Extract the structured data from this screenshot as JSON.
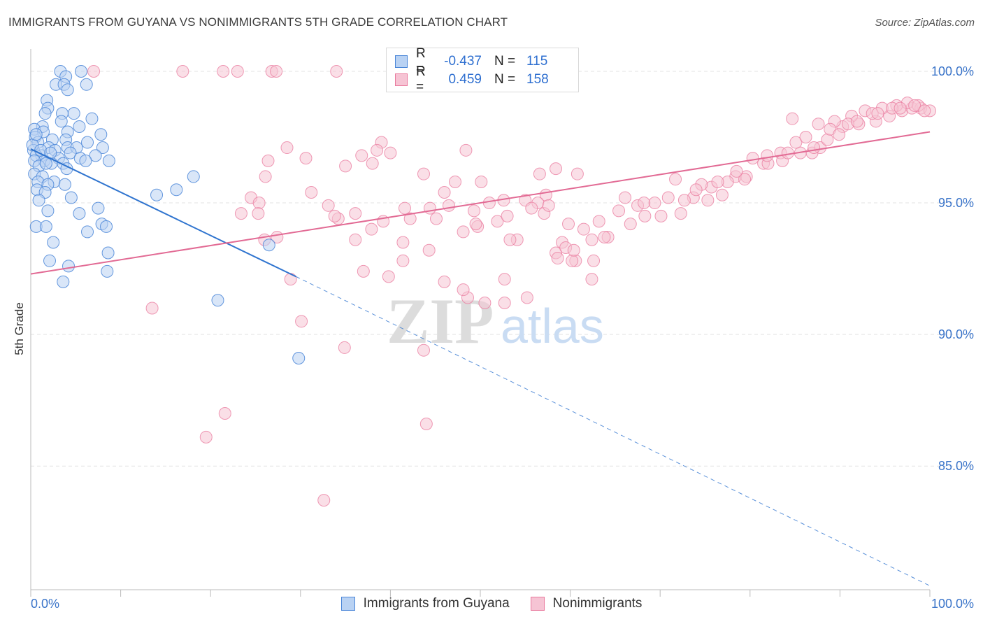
{
  "title": "IMMIGRANTS FROM GUYANA VS NONIMMIGRANTS 5TH GRADE CORRELATION CHART",
  "source": "Source: ZipAtlas.com",
  "watermark": {
    "zip": "ZIP",
    "atlas": "atlas"
  },
  "legend": {
    "r_label": "R =",
    "n_label": "N =",
    "series": [
      {
        "r": "-0.437",
        "n": "115"
      },
      {
        "r": "0.459",
        "n": "158"
      }
    ]
  },
  "bottom_legend": [
    "Immigrants from Guyana",
    "Nonimmigrants"
  ],
  "colors": {
    "blue": "#4a86d8",
    "blue_fill": "#b9d2f3",
    "blue_line": "#2f74cf",
    "pink": "#e9799d",
    "pink_fill": "#f6c4d4",
    "pink_line": "#e26a94",
    "tick_text": "#3a74c9",
    "grid": "#e3e3e3"
  },
  "chart_data": {
    "type": "scatter",
    "title": "IMMIGRANTS FROM GUYANA VS NONIMMIGRANTS 5TH GRADE CORRELATION CHART",
    "xlabel": "",
    "ylabel": "5th Grade",
    "xlim": [
      0,
      100
    ],
    "ylim": [
      80.3,
      100.85
    ],
    "x_tick_labels": [
      "0.0%",
      "100.0%"
    ],
    "y_ticks": [
      85,
      90,
      95,
      100
    ],
    "y_tick_labels": [
      "85.0%",
      "90.0%",
      "95.0%",
      "100.0%"
    ],
    "grid": true,
    "legend_placement": "bottom-center",
    "series": [
      {
        "name": "Immigrants from Guyana",
        "color": "#4a86d8",
        "points": [
          [
            3.3,
            100.0
          ],
          [
            5.6,
            100.0
          ],
          [
            3.9,
            99.8
          ],
          [
            2.8,
            99.5
          ],
          [
            3.7,
            99.5
          ],
          [
            4.1,
            99.3
          ],
          [
            6.2,
            99.5
          ],
          [
            1.8,
            98.9
          ],
          [
            1.9,
            98.6
          ],
          [
            4.8,
            98.4
          ],
          [
            3.5,
            98.4
          ],
          [
            1.6,
            98.4
          ],
          [
            6.8,
            98.2
          ],
          [
            3.4,
            98.1
          ],
          [
            5.4,
            97.9
          ],
          [
            1.3,
            97.9
          ],
          [
            0.4,
            97.8
          ],
          [
            1.4,
            97.7
          ],
          [
            4.1,
            97.7
          ],
          [
            7.8,
            97.6
          ],
          [
            0.5,
            97.5
          ],
          [
            2.4,
            97.4
          ],
          [
            3.9,
            97.4
          ],
          [
            6.3,
            97.3
          ],
          [
            0.8,
            97.3
          ],
          [
            4.1,
            97.1
          ],
          [
            2.0,
            97.1
          ],
          [
            5.1,
            97.1
          ],
          [
            8.0,
            97.1
          ],
          [
            0.3,
            97.0
          ],
          [
            2.7,
            97.0
          ],
          [
            4.4,
            96.9
          ],
          [
            1.2,
            96.8
          ],
          [
            0.6,
            96.8
          ],
          [
            3.1,
            96.7
          ],
          [
            5.5,
            96.7
          ],
          [
            7.2,
            96.8
          ],
          [
            1.5,
            96.6
          ],
          [
            0.4,
            96.6
          ],
          [
            2.3,
            96.5
          ],
          [
            3.6,
            96.5
          ],
          [
            8.7,
            96.6
          ],
          [
            0.9,
            96.4
          ],
          [
            1.7,
            96.5
          ],
          [
            4.0,
            96.3
          ],
          [
            6.1,
            96.6
          ],
          [
            0.4,
            96.1
          ],
          [
            1.3,
            96.0
          ],
          [
            2.6,
            95.8
          ],
          [
            0.8,
            95.8
          ],
          [
            3.8,
            95.7
          ],
          [
            1.9,
            95.7
          ],
          [
            0.7,
            95.5
          ],
          [
            1.6,
            95.4
          ],
          [
            18.1,
            96.0
          ],
          [
            16.2,
            95.5
          ],
          [
            14.0,
            95.3
          ],
          [
            4.5,
            95.2
          ],
          [
            0.9,
            95.1
          ],
          [
            7.5,
            94.8
          ],
          [
            1.9,
            94.7
          ],
          [
            5.4,
            94.6
          ],
          [
            7.9,
            94.2
          ],
          [
            0.6,
            94.1
          ],
          [
            1.7,
            94.1
          ],
          [
            8.4,
            94.1
          ],
          [
            6.3,
            93.9
          ],
          [
            2.5,
            93.5
          ],
          [
            26.5,
            93.4
          ],
          [
            8.6,
            93.1
          ],
          [
            2.1,
            92.8
          ],
          [
            4.2,
            92.6
          ],
          [
            8.5,
            92.4
          ],
          [
            3.6,
            92.0
          ],
          [
            20.8,
            91.3
          ],
          [
            29.8,
            89.1
          ],
          [
            0.2,
            97.2
          ],
          [
            0.6,
            97.6
          ],
          [
            1.1,
            97.0
          ],
          [
            2.2,
            96.9
          ]
        ]
      },
      {
        "name": "Nonimmigrants",
        "color": "#e9799d",
        "points": [
          [
            16.9,
            100.0
          ],
          [
            21.4,
            100.0
          ],
          [
            23.0,
            100.0
          ],
          [
            26.8,
            100.0
          ],
          [
            27.3,
            100.0
          ],
          [
            34.0,
            100.0
          ],
          [
            7.0,
            100.0
          ],
          [
            13.5,
            91.0
          ],
          [
            28.9,
            92.1
          ],
          [
            30.1,
            90.5
          ],
          [
            34.9,
            89.5
          ],
          [
            43.7,
            89.4
          ],
          [
            21.6,
            87.0
          ],
          [
            19.5,
            86.1
          ],
          [
            44.0,
            86.6
          ],
          [
            32.6,
            83.7
          ],
          [
            26.4,
            96.6
          ],
          [
            28.5,
            97.1
          ],
          [
            30.6,
            96.7
          ],
          [
            26.1,
            96.0
          ],
          [
            35.0,
            96.4
          ],
          [
            36.8,
            96.8
          ],
          [
            38.0,
            96.5
          ],
          [
            39.0,
            97.3
          ],
          [
            38.5,
            97.0
          ],
          [
            40.0,
            96.9
          ],
          [
            43.7,
            96.1
          ],
          [
            47.2,
            95.8
          ],
          [
            46.0,
            95.4
          ],
          [
            50.1,
            95.8
          ],
          [
            48.4,
            97.0
          ],
          [
            31.2,
            95.4
          ],
          [
            24.5,
            95.2
          ],
          [
            25.4,
            95.0
          ],
          [
            23.4,
            94.6
          ],
          [
            25.3,
            94.6
          ],
          [
            33.1,
            94.9
          ],
          [
            34.2,
            94.4
          ],
          [
            36.1,
            94.6
          ],
          [
            37.9,
            94.0
          ],
          [
            41.6,
            94.8
          ],
          [
            44.4,
            94.8
          ],
          [
            46.5,
            94.9
          ],
          [
            49.3,
            94.7
          ],
          [
            51.0,
            95.0
          ],
          [
            49.7,
            94.1
          ],
          [
            48.1,
            93.9
          ],
          [
            51.9,
            94.3
          ],
          [
            53.0,
            94.5
          ],
          [
            52.6,
            95.1
          ],
          [
            54.1,
            93.6
          ],
          [
            55.0,
            95.1
          ],
          [
            57.3,
            95.3
          ],
          [
            56.4,
            95.0
          ],
          [
            57.1,
            94.6
          ],
          [
            59.8,
            94.2
          ],
          [
            58.4,
            93.1
          ],
          [
            59.1,
            93.5
          ],
          [
            61.5,
            94.0
          ],
          [
            63.2,
            94.3
          ],
          [
            64.2,
            93.7
          ],
          [
            62.6,
            92.8
          ],
          [
            60.6,
            92.8
          ],
          [
            59.5,
            93.3
          ],
          [
            60.2,
            92.8
          ],
          [
            58.6,
            92.9
          ],
          [
            62.4,
            92.1
          ],
          [
            55.2,
            91.4
          ],
          [
            52.7,
            91.2
          ],
          [
            50.5,
            91.2
          ],
          [
            48.6,
            91.4
          ],
          [
            48.1,
            91.7
          ],
          [
            46.0,
            92.0
          ],
          [
            39.8,
            92.2
          ],
          [
            37.0,
            92.4
          ],
          [
            41.4,
            92.8
          ],
          [
            44.3,
            93.2
          ],
          [
            52.7,
            92.1
          ],
          [
            27.4,
            93.7
          ],
          [
            26.0,
            93.6
          ],
          [
            41.4,
            93.5
          ],
          [
            53.3,
            93.6
          ],
          [
            57.6,
            94.9
          ],
          [
            65.4,
            94.7
          ],
          [
            67.5,
            94.9
          ],
          [
            68.3,
            94.5
          ],
          [
            66.1,
            95.2
          ],
          [
            69.4,
            95.0
          ],
          [
            70.9,
            95.2
          ],
          [
            72.3,
            94.6
          ],
          [
            73.7,
            95.2
          ],
          [
            75.3,
            95.1
          ],
          [
            75.7,
            95.6
          ],
          [
            76.9,
            95.3
          ],
          [
            72.7,
            95.1
          ],
          [
            74.6,
            95.7
          ],
          [
            78.4,
            96.0
          ],
          [
            79.6,
            96.0
          ],
          [
            81.5,
            96.5
          ],
          [
            83.4,
            96.9
          ],
          [
            85.6,
            96.9
          ],
          [
            86.9,
            96.9
          ],
          [
            87.8,
            97.1
          ],
          [
            88.6,
            97.4
          ],
          [
            90.3,
            97.9
          ],
          [
            92.1,
            98.0
          ],
          [
            94.0,
            98.1
          ],
          [
            95.5,
            98.3
          ],
          [
            96.9,
            98.5
          ],
          [
            98.0,
            98.6
          ],
          [
            99.0,
            98.6
          ],
          [
            85.1,
            97.3
          ],
          [
            82.0,
            96.5
          ],
          [
            79.4,
            95.9
          ],
          [
            77.5,
            95.8
          ],
          [
            71.7,
            95.9
          ],
          [
            68.2,
            95.0
          ],
          [
            70.1,
            94.5
          ],
          [
            66.7,
            94.2
          ],
          [
            63.8,
            93.7
          ],
          [
            62.4,
            93.6
          ],
          [
            60.4,
            93.2
          ],
          [
            84.7,
            98.2
          ],
          [
            87.6,
            98.0
          ],
          [
            89.4,
            98.1
          ],
          [
            91.3,
            98.3
          ],
          [
            92.8,
            98.5
          ],
          [
            94.7,
            98.6
          ],
          [
            96.3,
            98.7
          ],
          [
            97.5,
            98.8
          ],
          [
            98.7,
            98.7
          ],
          [
            100.0,
            98.5
          ],
          [
            90.9,
            98.0
          ],
          [
            93.6,
            98.4
          ],
          [
            95.8,
            98.6
          ],
          [
            80.3,
            96.7
          ],
          [
            81.9,
            96.8
          ],
          [
            83.6,
            96.6
          ],
          [
            86.2,
            97.5
          ],
          [
            88.9,
            97.8
          ],
          [
            91.9,
            98.1
          ],
          [
            94.2,
            98.4
          ],
          [
            96.7,
            98.6
          ],
          [
            98.3,
            98.7
          ],
          [
            99.4,
            98.5
          ],
          [
            89.9,
            97.6
          ],
          [
            87.1,
            97.1
          ],
          [
            84.2,
            96.9
          ],
          [
            78.5,
            96.2
          ],
          [
            76.4,
            95.8
          ],
          [
            74.0,
            95.5
          ],
          [
            55.7,
            94.8
          ],
          [
            49.5,
            94.2
          ],
          [
            45.1,
            94.4
          ],
          [
            42.2,
            94.4
          ],
          [
            39.2,
            94.3
          ],
          [
            36.1,
            93.6
          ],
          [
            33.8,
            94.5
          ],
          [
            56.6,
            96.1
          ],
          [
            58.4,
            96.3
          ],
          [
            60.8,
            96.1
          ]
        ]
      }
    ],
    "trend_lines": [
      {
        "series": "Immigrants from Guyana",
        "x0": 0,
        "y0": 97.05,
        "x1": 29.5,
        "y1": 92.2,
        "dashed_to_x": 100,
        "dashed_to_y": 80.45
      },
      {
        "series": "Nonimmigrants",
        "x0": 0,
        "y0": 92.3,
        "x1": 100,
        "y1": 97.7
      }
    ]
  }
}
